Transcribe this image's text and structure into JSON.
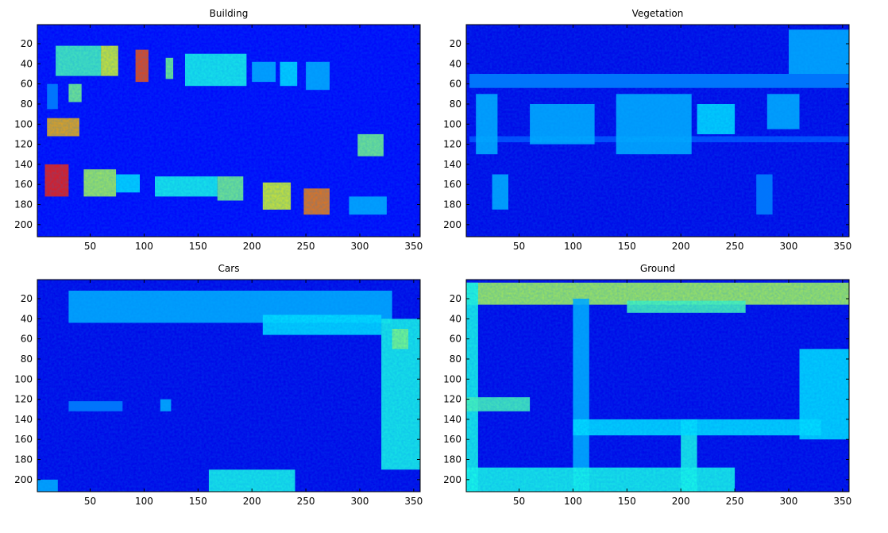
{
  "figure": {
    "background": "#ffffff",
    "colormap": "jet",
    "panels": [
      {
        "id": "building",
        "title": "Building"
      },
      {
        "id": "vegetation",
        "title": "Vegetation"
      },
      {
        "id": "cars",
        "title": "Cars"
      },
      {
        "id": "ground",
        "title": "Ground"
      }
    ]
  },
  "chart_data": [
    {
      "type": "heatmap",
      "title": "Building",
      "xlabel": "",
      "ylabel": "",
      "x_ticks": [
        50,
        100,
        150,
        200,
        250,
        300,
        350
      ],
      "y_ticks": [
        20,
        40,
        60,
        80,
        100,
        120,
        140,
        160,
        180,
        200
      ],
      "xlim": [
        1,
        356
      ],
      "ylim": [
        1,
        212
      ],
      "y_reversed": true,
      "colormap": "jet",
      "background_value": 0.12,
      "regions": [
        {
          "type": "rect",
          "x": [
            18,
            60
          ],
          "y": [
            22,
            52
          ],
          "value": 0.45
        },
        {
          "type": "rect",
          "x": [
            60,
            76
          ],
          "y": [
            22,
            52
          ],
          "value": 0.6
        },
        {
          "type": "rect",
          "x": [
            92,
            104
          ],
          "y": [
            26,
            58
          ],
          "value": 0.8
        },
        {
          "type": "rect",
          "x": [
            120,
            127
          ],
          "y": [
            34,
            55
          ],
          "value": 0.5
        },
        {
          "type": "rect",
          "x": [
            138,
            195
          ],
          "y": [
            30,
            62
          ],
          "value": 0.4
        },
        {
          "type": "rect",
          "x": [
            200,
            222
          ],
          "y": [
            38,
            58
          ],
          "value": 0.3
        },
        {
          "type": "rect",
          "x": [
            226,
            242
          ],
          "y": [
            38,
            62
          ],
          "value": 0.35
        },
        {
          "type": "rect",
          "x": [
            250,
            272
          ],
          "y": [
            38,
            66
          ],
          "value": 0.3
        },
        {
          "type": "rect",
          "x": [
            10,
            20
          ],
          "y": [
            60,
            85
          ],
          "value": 0.25
        },
        {
          "type": "rect",
          "x": [
            30,
            42
          ],
          "y": [
            60,
            78
          ],
          "value": 0.5
        },
        {
          "type": "rect",
          "x": [
            10,
            40
          ],
          "y": [
            94,
            112
          ],
          "value": 0.7
        },
        {
          "type": "rect",
          "x": [
            298,
            322
          ],
          "y": [
            110,
            132
          ],
          "value": 0.5
        },
        {
          "type": "rect",
          "x": [
            8,
            30
          ],
          "y": [
            140,
            172
          ],
          "value": 0.85
        },
        {
          "type": "rect",
          "x": [
            44,
            74
          ],
          "y": [
            145,
            172
          ],
          "value": 0.55
        },
        {
          "type": "rect",
          "x": [
            74,
            96
          ],
          "y": [
            150,
            168
          ],
          "value": 0.35
        },
        {
          "type": "rect",
          "x": [
            110,
            168
          ],
          "y": [
            152,
            172
          ],
          "value": 0.4
        },
        {
          "type": "rect",
          "x": [
            168,
            192
          ],
          "y": [
            152,
            176
          ],
          "value": 0.5
        },
        {
          "type": "rect",
          "x": [
            210,
            236
          ],
          "y": [
            158,
            185
          ],
          "value": 0.6
        },
        {
          "type": "rect",
          "x": [
            248,
            272
          ],
          "y": [
            164,
            190
          ],
          "value": 0.75
        },
        {
          "type": "rect",
          "x": [
            290,
            325
          ],
          "y": [
            172,
            190
          ],
          "value": 0.3
        }
      ]
    },
    {
      "type": "heatmap",
      "title": "Vegetation",
      "xlabel": "",
      "ylabel": "",
      "x_ticks": [
        50,
        100,
        150,
        200,
        250,
        300,
        350
      ],
      "y_ticks": [
        20,
        40,
        60,
        80,
        100,
        120,
        140,
        160,
        180,
        200
      ],
      "xlim": [
        1,
        356
      ],
      "ylim": [
        1,
        212
      ],
      "y_reversed": true,
      "colormap": "jet",
      "background_value": 0.1,
      "regions": [
        {
          "type": "rect",
          "x": [
            4,
            356
          ],
          "y": [
            50,
            64
          ],
          "value": 0.25
        },
        {
          "type": "rect",
          "x": [
            4,
            356
          ],
          "y": [
            112,
            118
          ],
          "value": 0.2
        },
        {
          "type": "rect",
          "x": [
            10,
            30
          ],
          "y": [
            70,
            130
          ],
          "value": 0.3
        },
        {
          "type": "rect",
          "x": [
            60,
            120
          ],
          "y": [
            80,
            120
          ],
          "value": 0.3
        },
        {
          "type": "rect",
          "x": [
            140,
            210
          ],
          "y": [
            70,
            130
          ],
          "value": 0.3
        },
        {
          "type": "rect",
          "x": [
            215,
            250
          ],
          "y": [
            80,
            110
          ],
          "value": 0.35
        },
        {
          "type": "rect",
          "x": [
            280,
            310
          ],
          "y": [
            70,
            105
          ],
          "value": 0.3
        },
        {
          "type": "rect",
          "x": [
            300,
            356
          ],
          "y": [
            6,
            50
          ],
          "value": 0.3
        },
        {
          "type": "rect",
          "x": [
            25,
            40
          ],
          "y": [
            150,
            185
          ],
          "value": 0.3
        },
        {
          "type": "rect",
          "x": [
            270,
            285
          ],
          "y": [
            150,
            190
          ],
          "value": 0.25
        }
      ]
    },
    {
      "type": "heatmap",
      "title": "Cars",
      "xlabel": "",
      "ylabel": "",
      "x_ticks": [
        50,
        100,
        150,
        200,
        250,
        300,
        350
      ],
      "y_ticks": [
        20,
        40,
        60,
        80,
        100,
        120,
        140,
        160,
        180,
        200
      ],
      "xlim": [
        1,
        356
      ],
      "ylim": [
        1,
        212
      ],
      "y_reversed": true,
      "colormap": "jet",
      "background_value": 0.1,
      "regions": [
        {
          "type": "rect",
          "x": [
            30,
            330
          ],
          "y": [
            12,
            44
          ],
          "value": 0.3
        },
        {
          "type": "rect",
          "x": [
            210,
            320
          ],
          "y": [
            36,
            56
          ],
          "value": 0.35
        },
        {
          "type": "rect",
          "x": [
            320,
            356
          ],
          "y": [
            40,
            190
          ],
          "value": 0.4
        },
        {
          "type": "rect",
          "x": [
            330,
            345
          ],
          "y": [
            50,
            70
          ],
          "value": 0.5
        },
        {
          "type": "rect",
          "x": [
            160,
            240
          ],
          "y": [
            190,
            212
          ],
          "value": 0.4
        },
        {
          "type": "rect",
          "x": [
            0,
            20
          ],
          "y": [
            200,
            212
          ],
          "value": 0.3
        },
        {
          "type": "rect",
          "x": [
            30,
            80
          ],
          "y": [
            122,
            132
          ],
          "value": 0.25
        },
        {
          "type": "rect",
          "x": [
            115,
            125
          ],
          "y": [
            120,
            132
          ],
          "value": 0.3
        }
      ]
    },
    {
      "type": "heatmap",
      "title": "Ground",
      "xlabel": "",
      "ylabel": "",
      "x_ticks": [
        50,
        100,
        150,
        200,
        250,
        300,
        350
      ],
      "y_ticks": [
        20,
        40,
        60,
        80,
        100,
        120,
        140,
        160,
        180,
        200
      ],
      "xlim": [
        1,
        356
      ],
      "ylim": [
        1,
        212
      ],
      "y_reversed": true,
      "colormap": "jet",
      "background_value": 0.1,
      "regions": [
        {
          "type": "rect",
          "x": [
            0,
            356
          ],
          "y": [
            4,
            26
          ],
          "value": 0.55
        },
        {
          "type": "rect",
          "x": [
            0,
            12
          ],
          "y": [
            4,
            212
          ],
          "value": 0.4
        },
        {
          "type": "rect",
          "x": [
            100,
            115
          ],
          "y": [
            20,
            212
          ],
          "value": 0.3
        },
        {
          "type": "rect",
          "x": [
            200,
            215
          ],
          "y": [
            140,
            212
          ],
          "value": 0.4
        },
        {
          "type": "rect",
          "x": [
            310,
            356
          ],
          "y": [
            70,
            160
          ],
          "value": 0.35
        },
        {
          "type": "rect",
          "x": [
            100,
            330
          ],
          "y": [
            140,
            156
          ],
          "value": 0.35
        },
        {
          "type": "rect",
          "x": [
            0,
            60
          ],
          "y": [
            118,
            132
          ],
          "value": 0.45
        },
        {
          "type": "rect",
          "x": [
            0,
            250
          ],
          "y": [
            188,
            212
          ],
          "value": 0.4
        },
        {
          "type": "rect",
          "x": [
            150,
            260
          ],
          "y": [
            22,
            34
          ],
          "value": 0.45
        }
      ]
    }
  ]
}
